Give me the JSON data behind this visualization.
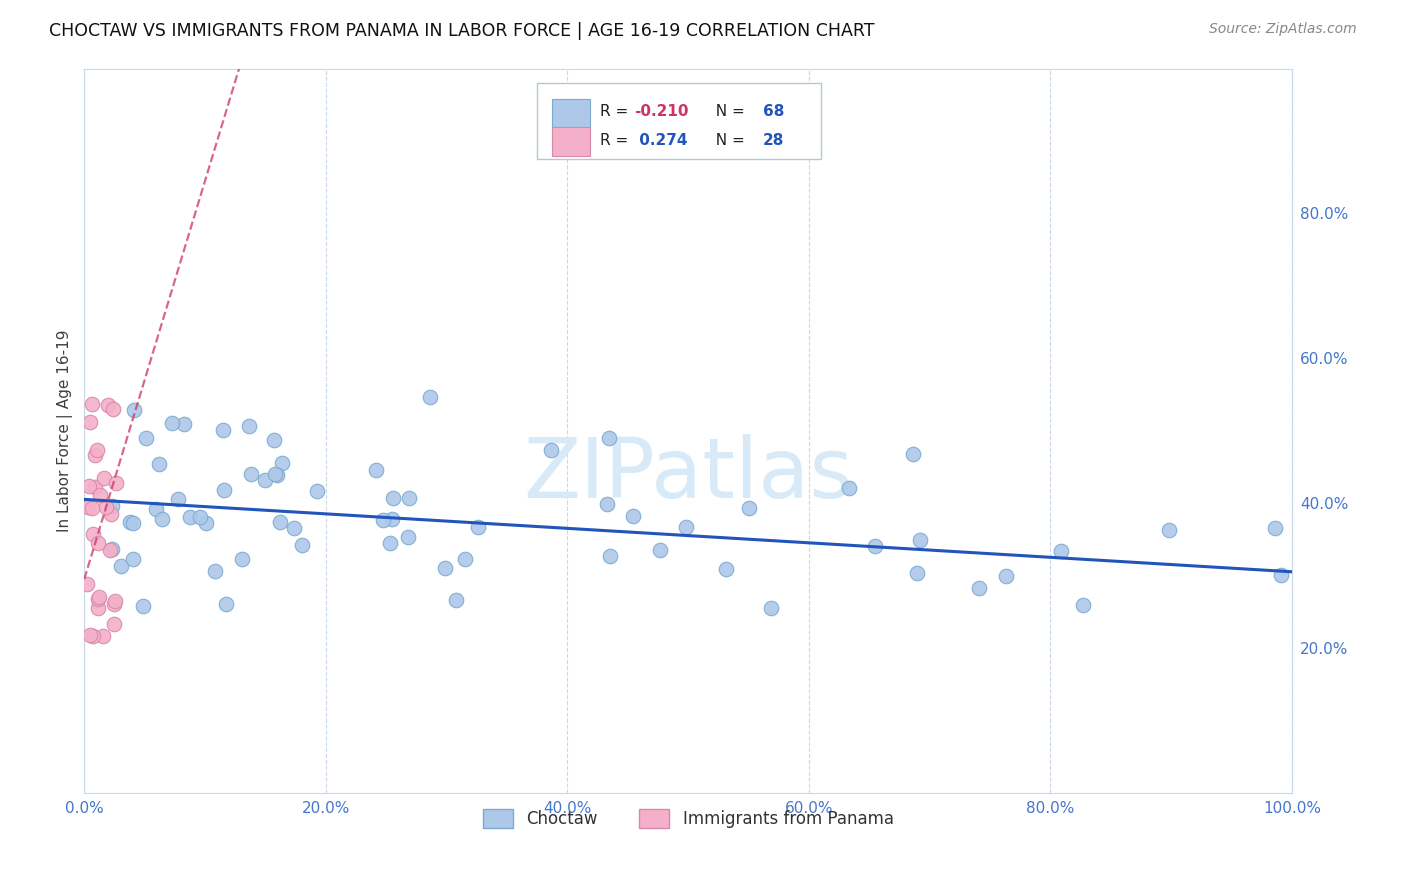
{
  "title": "CHOCTAW VS IMMIGRANTS FROM PANAMA IN LABOR FORCE | AGE 16-19 CORRELATION CHART",
  "source": "Source: ZipAtlas.com",
  "ylabel": "In Labor Force | Age 16-19",
  "xlim": [
    0.0,
    1.0
  ],
  "ylim": [
    0.0,
    1.0
  ],
  "xticks": [
    0.0,
    0.2,
    0.4,
    0.6,
    0.8,
    1.0
  ],
  "yticks_right": [
    0.2,
    0.4,
    0.6,
    0.8
  ],
  "xtick_labels": [
    "0.0%",
    "20.0%",
    "40.0%",
    "60.0%",
    "80.0%",
    "100.0%"
  ],
  "ytick_labels_right": [
    "20.0%",
    "40.0%",
    "60.0%",
    "80.0%"
  ],
  "blue_R": -0.21,
  "blue_N": 68,
  "pink_R": 0.274,
  "pink_N": 28,
  "blue_scatter_color": "#adc8e8",
  "blue_scatter_edge": "#7aaad0",
  "pink_scatter_color": "#f4b0c8",
  "pink_scatter_edge": "#d888a8",
  "blue_line_color": "#2255bb",
  "pink_line_color": "#cc3366",
  "watermark_text": "ZIPatlas",
  "watermark_color": "#d8eaf8",
  "legend_R_color": "#cc3366",
  "legend_N_color": "#2255bb",
  "tick_color": "#4477cc",
  "grid_color": "#c8d8e8",
  "legend_box_edge": "#b0c8d8",
  "blue_trend_intercept": 0.405,
  "blue_trend_slope": -0.1,
  "pink_trend_intercept": 0.295,
  "pink_trend_slope": 5.5
}
